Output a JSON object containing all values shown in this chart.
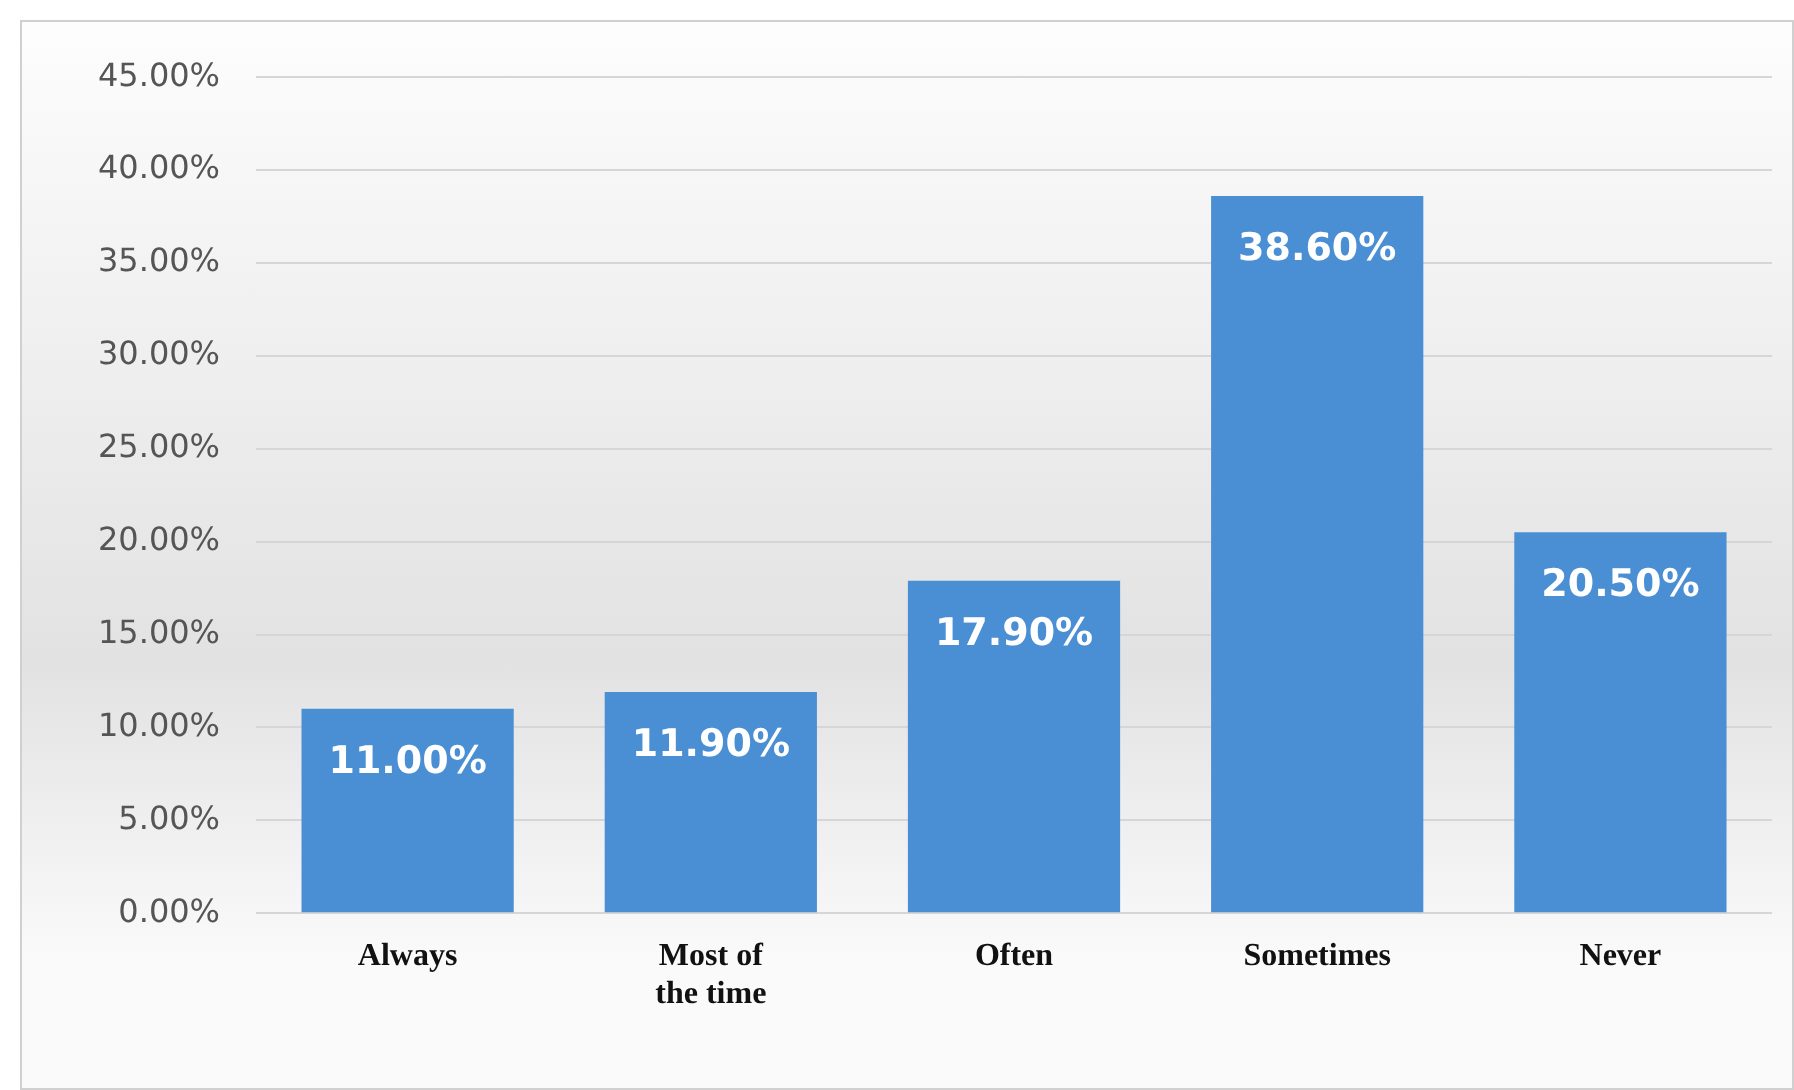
{
  "chart_data": {
    "type": "bar",
    "categories": [
      "Always",
      "Most of the time",
      "Often",
      "Sometimes",
      "Never"
    ],
    "values": [
      11.0,
      11.9,
      17.9,
      38.6,
      20.5
    ],
    "value_labels": [
      "11.00%",
      "11.90%",
      "17.90%",
      "38.60%",
      "20.50%"
    ],
    "color": "#4a8fd3",
    "ylim": [
      0,
      45
    ],
    "yticks": [
      {
        "value": 0,
        "label": "0.00%"
      },
      {
        "value": 5,
        "label": "5.00%"
      },
      {
        "value": 10,
        "label": "10.00%"
      },
      {
        "value": 15,
        "label": "15.00%"
      },
      {
        "value": 20,
        "label": "20.00%"
      },
      {
        "value": 25,
        "label": "25.00%"
      },
      {
        "value": 30,
        "label": "30.00%"
      },
      {
        "value": 35,
        "label": "35.00%"
      },
      {
        "value": 40,
        "label": "40.00%"
      },
      {
        "value": 45,
        "label": "45.00%"
      }
    ],
    "grid": "y",
    "legend": false
  }
}
